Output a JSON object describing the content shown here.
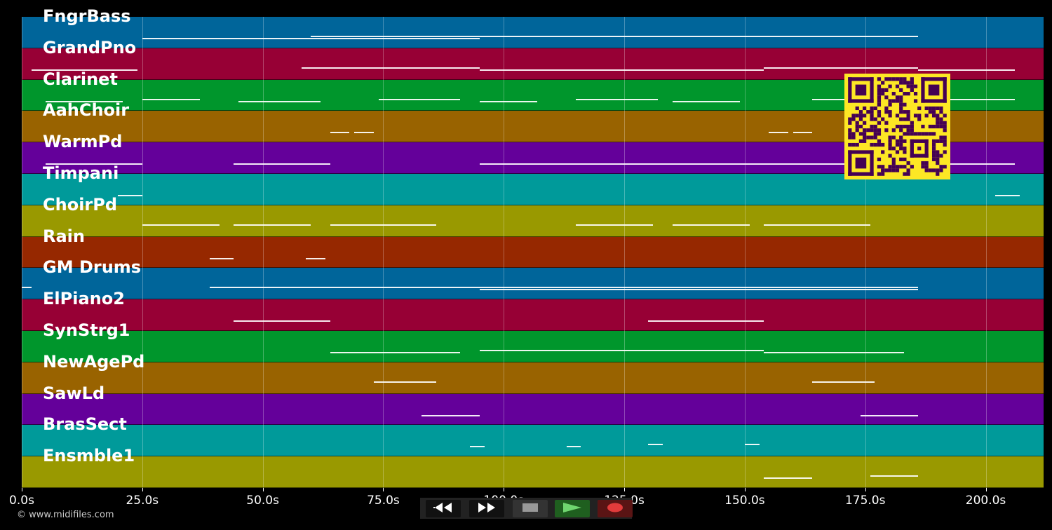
{
  "tracks": [
    {
      "name": "FngrBass",
      "color": "#00659a"
    },
    {
      "name": "GrandPno",
      "color": "#970035"
    },
    {
      "name": "Clarinet",
      "color": "#00962c"
    },
    {
      "name": "AahChoir",
      "color": "#996300"
    },
    {
      "name": "WarmPd",
      "color": "#64009a"
    },
    {
      "name": "Timpani",
      "color": "#009a9a"
    },
    {
      "name": "ChoirPd",
      "color": "#999900"
    },
    {
      "name": "Rain",
      "color": "#962800"
    },
    {
      "name": "GM Drums",
      "color": "#00659a"
    },
    {
      "name": "ElPiano2",
      "color": "#970035"
    },
    {
      "name": "SynStrg1",
      "color": "#00962c"
    },
    {
      "name": "NewAgePd",
      "color": "#996300"
    },
    {
      "name": "SawLd",
      "color": "#64009a"
    },
    {
      "name": "BrasSect",
      "color": "#009a9a"
    },
    {
      "name": "Ensmble1",
      "color": "#999900"
    }
  ],
  "time_axis": {
    "ticks": [
      "0.0s",
      "25.0s",
      "50.0s",
      "75.0s",
      "100.0s",
      "125.0s",
      "150.0s",
      "175.0s",
      "200.0s"
    ],
    "tick_seconds": [
      0,
      25,
      50,
      75,
      100,
      125,
      150,
      175,
      200
    ],
    "max_seconds": 212
  },
  "copyright": "© www.midifiles.com",
  "controls": {
    "rewind_icon": "rewind-icon",
    "fast_forward_icon": "fast-forward-icon",
    "stop_icon": "stop-icon",
    "play_icon": "play-icon",
    "record_icon": "record-icon",
    "play_color": "#6fd66f",
    "record_color": "#e23b3b"
  },
  "qr_colors": {
    "fg": "#440154",
    "bg": "#fde725"
  },
  "notes": [
    [
      0,
      25,
      95,
      0
    ],
    [
      0,
      60,
      186,
      1
    ],
    [
      1,
      2,
      24,
      0
    ],
    [
      1,
      58,
      95,
      1
    ],
    [
      1,
      95,
      154,
      0
    ],
    [
      1,
      154,
      186,
      1
    ],
    [
      1,
      186,
      206,
      0
    ],
    [
      2,
      5,
      21,
      0
    ],
    [
      2,
      25,
      37,
      1
    ],
    [
      2,
      45,
      62,
      0
    ],
    [
      2,
      74,
      91,
      1
    ],
    [
      2,
      95,
      107,
      0
    ],
    [
      2,
      115,
      132,
      1
    ],
    [
      2,
      135,
      149,
      0
    ],
    [
      2,
      164,
      206,
      1
    ],
    [
      3,
      64,
      68,
      0
    ],
    [
      3,
      69,
      73,
      0
    ],
    [
      3,
      155,
      159,
      0
    ],
    [
      3,
      160,
      164,
      0
    ],
    [
      4,
      5,
      25,
      0
    ],
    [
      4,
      44,
      64,
      0
    ],
    [
      4,
      95,
      154,
      0
    ],
    [
      4,
      154,
      206,
      0
    ],
    [
      5,
      20,
      25,
      0
    ],
    [
      5,
      202,
      207,
      0
    ],
    [
      6,
      25,
      41,
      1
    ],
    [
      6,
      44,
      60,
      1
    ],
    [
      6,
      64,
      86,
      1
    ],
    [
      6,
      115,
      131,
      1
    ],
    [
      6,
      135,
      151,
      1
    ],
    [
      6,
      154,
      176,
      1
    ],
    [
      7,
      39,
      44,
      0
    ],
    [
      7,
      59,
      63,
      0
    ],
    [
      8,
      0,
      2,
      1
    ],
    [
      8,
      39,
      186,
      1
    ],
    [
      8,
      95,
      186,
      0
    ],
    [
      9,
      44,
      64,
      0
    ],
    [
      9,
      130,
      154,
      0
    ],
    [
      10,
      64,
      91,
      0
    ],
    [
      10,
      95,
      154,
      1
    ],
    [
      10,
      154,
      183,
      0
    ],
    [
      11,
      73,
      86,
      1
    ],
    [
      11,
      164,
      177,
      1
    ],
    [
      12,
      83,
      95,
      0
    ],
    [
      12,
      174,
      186,
      0
    ],
    [
      13,
      93,
      96,
      0
    ],
    [
      13,
      113,
      116,
      0
    ],
    [
      13,
      130,
      133,
      1
    ],
    [
      13,
      150,
      153,
      1
    ],
    [
      14,
      154,
      164,
      0
    ],
    [
      14,
      176,
      186,
      1
    ]
  ]
}
